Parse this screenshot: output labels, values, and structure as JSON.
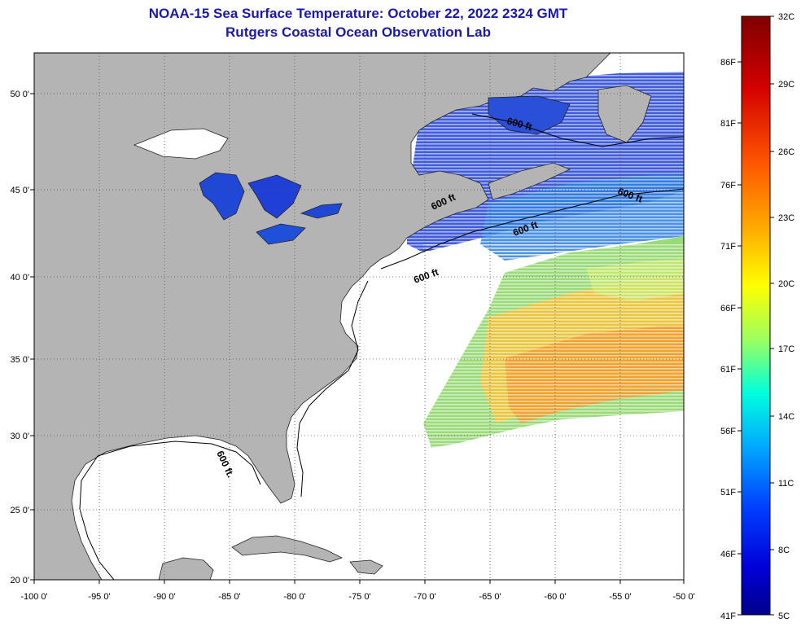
{
  "title": {
    "line1": "NOAA-15 Sea Surface Temperature:  October 22, 2022 2324 GMT",
    "line2": "Rutgers Coastal Ocean Observation Lab"
  },
  "colors": {
    "title": "#1a1aa6",
    "land": "#b4b4b4",
    "ocean_nodata": "#ffffff",
    "grid": "#555555"
  },
  "map": {
    "lon_labels": [
      "-100 0'",
      "-95 0'",
      "-90 0'",
      "-85 0'",
      "-80 0'",
      "-75 0'",
      "-70 0'",
      "-65 0'",
      "-60 0'",
      "-55 0'",
      "-50 0'"
    ],
    "lat_labels": [
      "50 0'",
      "45 0'",
      "40 0'",
      "35 0'",
      "30 0'",
      "25 0'",
      "20 0'"
    ],
    "contour_labels": [
      "600 ft.",
      "600 ft",
      "600 ft",
      "600 ft",
      "600 ft",
      "600 ft"
    ]
  },
  "colorbar": {
    "fahrenheit_labels": [
      "86F",
      "81F",
      "76F",
      "71F",
      "66F",
      "61F",
      "56F",
      "51F",
      "46F",
      "41F"
    ],
    "celsius_labels": [
      "32C",
      "29C",
      "26C",
      "23C",
      "20C",
      "17C",
      "14C",
      "11C",
      "8C",
      "5C"
    ]
  }
}
